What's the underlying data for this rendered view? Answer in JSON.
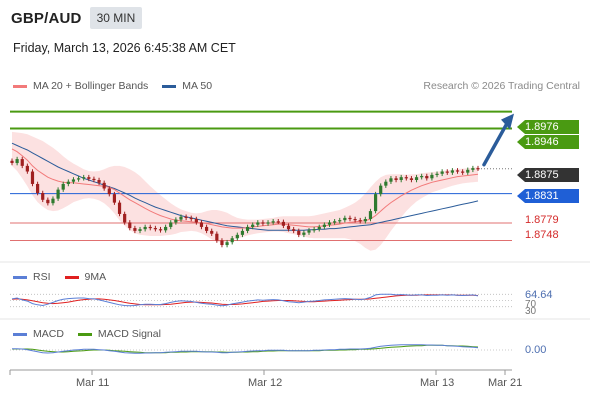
{
  "header": {
    "symbol": "GBP/AUD",
    "timeframe": "30 MIN",
    "datetime": "Friday, March 13, 2026 6:45:38 AM CET"
  },
  "legend": {
    "ma20_label": "MA 20 + Bollinger Bands",
    "ma20_color": "#f27a7a",
    "ma50_label": "MA 50",
    "ma50_color": "#2b5c9a",
    "credit": "Research © 2026 Trading Central"
  },
  "levels": {
    "r2": "1.8976",
    "r1": "1.8946",
    "last": "1.8875",
    "pivot": "1.8831",
    "s1": "1.8779",
    "s2": "1.8748"
  },
  "rsi": {
    "label": "RSI",
    "ma_label": "9MA",
    "value": "64.64",
    "color": "#5b7fd6",
    "ma_color": "#e02020",
    "ticks": [
      "70",
      "30"
    ]
  },
  "macd": {
    "label": "MACD",
    "signal_label": "MACD Signal",
    "value": "0.00",
    "color": "#5b7fd6",
    "signal_color": "#4a9a12"
  },
  "xaxis": {
    "labels": [
      "Mar 11",
      "Mar 12",
      "Mar 13",
      "Mar 21"
    ]
  },
  "chart_data": {
    "type": "line",
    "title": "GBP/AUD",
    "ylim": [
      1.871,
      1.9
    ],
    "horizontal_levels": [
      {
        "value": 1.8976,
        "color": "#4a9a12",
        "kind": "resistance"
      },
      {
        "value": 1.8946,
        "color": "#4a9a12",
        "kind": "resistance"
      },
      {
        "value": 1.8831,
        "color": "#1f5fd6",
        "kind": "pivot"
      },
      {
        "value": 1.8779,
        "color": "#e07070",
        "kind": "support"
      },
      {
        "value": 1.8748,
        "color": "#e07070",
        "kind": "support"
      }
    ],
    "close": [
      1.8885,
      1.8892,
      1.888,
      1.887,
      1.8848,
      1.8832,
      1.882,
      1.8814,
      1.8822,
      1.8838,
      1.8848,
      1.8852,
      1.8856,
      1.8858,
      1.886,
      1.8857,
      1.8855,
      1.885,
      1.884,
      1.883,
      1.8815,
      1.8795,
      1.878,
      1.877,
      1.8765,
      1.8768,
      1.8772,
      1.877,
      1.8768,
      1.8766,
      1.8772,
      1.878,
      1.8785,
      1.879,
      1.8788,
      1.8786,
      1.878,
      1.8772,
      1.8765,
      1.876,
      1.8748,
      1.874,
      1.8745,
      1.8752,
      1.8758,
      1.8765,
      1.8772,
      1.8776,
      1.878,
      1.8778,
      1.878,
      1.8782,
      1.8781,
      1.8774,
      1.8768,
      1.8765,
      1.8758,
      1.8762,
      1.8766,
      1.8768,
      1.8772,
      1.8776,
      1.878,
      1.8782,
      1.8784,
      1.8788,
      1.8786,
      1.8784,
      1.8782,
      1.8786,
      1.88,
      1.883,
      1.8845,
      1.8852,
      1.8858,
      1.8855,
      1.886,
      1.8858,
      1.8855,
      1.886,
      1.8862,
      1.8858,
      1.8864,
      1.8866,
      1.887,
      1.8868,
      1.8872,
      1.887,
      1.8868,
      1.8873,
      1.8876,
      1.8875
    ],
    "ma20": [
      1.891,
      1.8905,
      1.8898,
      1.889,
      1.888,
      1.8872,
      1.8866,
      1.886,
      1.8856,
      1.8853,
      1.8851,
      1.885,
      1.885,
      1.8849,
      1.8848,
      1.8847,
      1.8846,
      1.8845,
      1.8844,
      1.8842,
      1.8838,
      1.8832,
      1.8826,
      1.882,
      1.8815,
      1.881,
      1.8805,
      1.88,
      1.8796,
      1.8792,
      1.8789,
      1.8786,
      1.8784,
      1.8783,
      1.8782,
      1.8781,
      1.878,
      1.8779,
      1.8778,
      1.8776,
      1.8774,
      1.8772,
      1.8771,
      1.877,
      1.877,
      1.877,
      1.8771,
      1.8772,
      1.8773,
      1.8774,
      1.8775,
      1.8776,
      1.8777,
      1.8777,
      1.8776,
      1.8775,
      1.8774,
      1.8773,
      1.8772,
      1.8772,
      1.8773,
      1.8774,
      1.8775,
      1.8776,
      1.8777,
      1.8779,
      1.878,
      1.8781,
      1.8782,
      1.8783,
      1.8786,
      1.8792,
      1.88,
      1.8808,
      1.8815,
      1.8821,
      1.8827,
      1.8832,
      1.8837,
      1.8841,
      1.8845,
      1.8848,
      1.8851,
      1.8853,
      1.8855,
      1.8857,
      1.8859,
      1.8861,
      1.8862,
      1.8863,
      1.8864,
      1.8865
    ],
    "ma50": [
      1.892,
      1.8916,
      1.8912,
      1.8908,
      1.8903,
      1.8898,
      1.8893,
      1.8888,
      1.8883,
      1.8878,
      1.8874,
      1.887,
      1.8866,
      1.8862,
      1.8858,
      1.8855,
      1.8852,
      1.8849,
      1.8846,
      1.8843,
      1.884,
      1.8836,
      1.8832,
      1.8828,
      1.8823,
      1.8819,
      1.8815,
      1.8811,
      1.8807,
      1.8804,
      1.8801,
      1.8798,
      1.8795,
      1.8792,
      1.879,
      1.8788,
      1.8786,
      1.8784,
      1.8782,
      1.878,
      1.8778,
      1.8776,
      1.8774,
      1.8773,
      1.8772,
      1.8771,
      1.877,
      1.8769,
      1.8768,
      1.8767,
      1.8766,
      1.8766,
      1.8766,
      1.8766,
      1.8766,
      1.8766,
      1.8766,
      1.8766,
      1.8767,
      1.8767,
      1.8768,
      1.8768,
      1.8769,
      1.8769,
      1.877,
      1.8771,
      1.8772,
      1.8773,
      1.8774,
      1.8775,
      1.8776,
      1.8778,
      1.878,
      1.8782,
      1.8784,
      1.8786,
      1.8788,
      1.879,
      1.8792,
      1.8794,
      1.8796,
      1.8798,
      1.88,
      1.8802,
      1.8804,
      1.8806,
      1.8808,
      1.881,
      1.8812,
      1.8814,
      1.8816,
      1.8818
    ],
    "bb_width": [
      0.003,
      0.0034,
      0.004,
      0.0046,
      0.0052,
      0.0056,
      0.0058,
      0.0058,
      0.0056,
      0.0052,
      0.0046,
      0.004,
      0.0034,
      0.003,
      0.0026,
      0.0024,
      0.0024,
      0.0026,
      0.003,
      0.0036,
      0.0042,
      0.0048,
      0.0052,
      0.0054,
      0.0054,
      0.0052,
      0.0048,
      0.0044,
      0.004,
      0.0036,
      0.0032,
      0.0028,
      0.0024,
      0.002,
      0.0018,
      0.0016,
      0.0016,
      0.0018,
      0.0022,
      0.0026,
      0.0028,
      0.0028,
      0.0026,
      0.0022,
      0.0018,
      0.0016,
      0.0014,
      0.0013,
      0.0012,
      0.0012,
      0.0012,
      0.0012,
      0.0013,
      0.0014,
      0.0015,
      0.0016,
      0.0017,
      0.0018,
      0.0019,
      0.002,
      0.0021,
      0.0022,
      0.0023,
      0.0024,
      0.0025,
      0.0027,
      0.003,
      0.0034,
      0.004,
      0.0048,
      0.0056,
      0.006,
      0.006,
      0.0056,
      0.005,
      0.0044,
      0.0038,
      0.0032,
      0.0028,
      0.0024,
      0.0022,
      0.002,
      0.0018,
      0.0017,
      0.0016,
      0.0015,
      0.0014,
      0.0014,
      0.0013,
      0.0013,
      0.0013,
      0.0013
    ],
    "rsi": [
      55,
      58,
      52,
      48,
      40,
      36,
      34,
      38,
      44,
      50,
      54,
      56,
      57,
      58,
      58,
      56,
      55,
      52,
      48,
      44,
      40,
      36,
      34,
      33,
      34,
      36,
      38,
      38,
      37,
      37,
      40,
      44,
      47,
      49,
      48,
      47,
      44,
      41,
      39,
      38,
      35,
      33,
      35,
      39,
      42,
      45,
      48,
      50,
      52,
      51,
      52,
      53,
      52,
      49,
      46,
      45,
      43,
      45,
      47,
      48,
      50,
      52,
      53,
      54,
      55,
      56,
      55,
      54,
      53,
      55,
      60,
      68,
      70,
      70,
      70,
      68,
      69,
      68,
      67,
      68,
      68,
      66,
      67,
      67,
      68,
      67,
      68,
      67,
      66,
      67,
      68,
      65
    ],
    "rsi_ma": [
      54,
      55,
      54,
      52,
      49,
      46,
      43,
      41,
      40,
      41,
      43,
      45,
      48,
      51,
      53,
      54,
      55,
      55,
      54,
      52,
      50,
      47,
      44,
      41,
      39,
      37,
      36,
      36,
      36,
      36,
      37,
      38,
      40,
      42,
      44,
      45,
      45,
      44,
      43,
      42,
      40,
      38,
      37,
      37,
      38,
      39,
      41,
      43,
      45,
      47,
      48,
      49,
      50,
      50,
      50,
      49,
      48,
      47,
      46,
      46,
      47,
      48,
      49,
      50,
      51,
      52,
      53,
      54,
      54,
      54,
      55,
      57,
      59,
      61,
      63,
      65,
      66,
      67,
      67,
      67,
      68,
      68,
      68,
      68,
      68,
      68,
      68,
      67,
      67,
      67,
      67,
      66
    ],
    "macd": [
      0.0004,
      0.0004,
      0.0003,
      0.0001,
      -0.0002,
      -0.0005,
      -0.0008,
      -0.0009,
      -0.0008,
      -0.0006,
      -0.0004,
      -0.0002,
      0.0,
      0.0001,
      0.0002,
      0.0002,
      0.0002,
      0.0001,
      0.0,
      -0.0002,
      -0.0004,
      -0.0006,
      -0.0008,
      -0.0009,
      -0.001,
      -0.001,
      -0.0009,
      -0.0009,
      -0.0008,
      -0.0008,
      -0.0007,
      -0.0006,
      -0.0005,
      -0.0004,
      -0.0004,
      -0.0004,
      -0.0004,
      -0.0005,
      -0.0006,
      -0.0006,
      -0.0007,
      -0.0008,
      -0.0008,
      -0.0007,
      -0.0006,
      -0.0005,
      -0.0004,
      -0.0003,
      -0.0002,
      -0.0002,
      -0.0001,
      -0.0001,
      -0.0001,
      -0.0001,
      -0.0002,
      -0.0002,
      -0.0002,
      -0.0002,
      -0.0002,
      -0.0001,
      -0.0001,
      0.0,
      0.0001,
      0.0001,
      0.0002,
      0.0002,
      0.0003,
      0.0003,
      0.0003,
      0.0004,
      0.0005,
      0.0008,
      0.0011,
      0.0013,
      0.0014,
      0.0015,
      0.0016,
      0.0016,
      0.0016,
      0.0016,
      0.0016,
      0.0015,
      0.0015,
      0.0014,
      0.0014,
      0.0013,
      0.0012,
      0.0011,
      0.001,
      0.0009,
      0.0008,
      0.0007
    ],
    "macd_signal": [
      0.0003,
      0.0003,
      0.0003,
      0.0003,
      0.0002,
      0.0,
      -0.0002,
      -0.0004,
      -0.0005,
      -0.0006,
      -0.0006,
      -0.0005,
      -0.0004,
      -0.0003,
      -0.0002,
      -0.0001,
      0.0,
      0.0,
      0.0,
      -0.0001,
      -0.0002,
      -0.0003,
      -0.0004,
      -0.0005,
      -0.0006,
      -0.0007,
      -0.0008,
      -0.0008,
      -0.0008,
      -0.0008,
      -0.0008,
      -0.0007,
      -0.0007,
      -0.0006,
      -0.0006,
      -0.0005,
      -0.0005,
      -0.0005,
      -0.0005,
      -0.0005,
      -0.0006,
      -0.0006,
      -0.0007,
      -0.0007,
      -0.0007,
      -0.0006,
      -0.0006,
      -0.0005,
      -0.0005,
      -0.0004,
      -0.0003,
      -0.0003,
      -0.0002,
      -0.0002,
      -0.0002,
      -0.0002,
      -0.0002,
      -0.0002,
      -0.0002,
      -0.0002,
      -0.0002,
      -0.0001,
      -0.0001,
      -0.0001,
      0.0,
      0.0,
      0.0001,
      0.0001,
      0.0002,
      0.0002,
      0.0003,
      0.0004,
      0.0005,
      0.0007,
      0.0008,
      0.0009,
      0.001,
      0.0011,
      0.0012,
      0.0013,
      0.0013,
      0.0014,
      0.0014,
      0.0014,
      0.0014,
      0.0013,
      0.0013,
      0.0012,
      0.0012,
      0.0011,
      0.001,
      0.0009
    ],
    "arrow_target": 1.8976
  }
}
